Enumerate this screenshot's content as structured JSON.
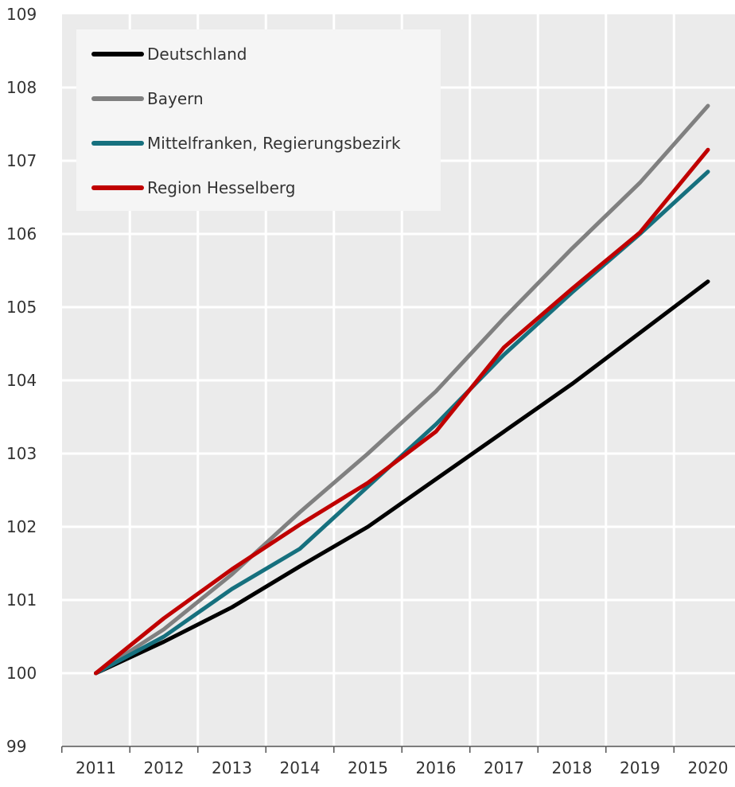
{
  "chart_data": {
    "type": "line",
    "title": "",
    "xlabel": "",
    "ylabel": "",
    "categories": [
      "2011",
      "2012",
      "2013",
      "2014",
      "2015",
      "2016",
      "2017",
      "2018",
      "2019",
      "2020"
    ],
    "ylim": [
      99,
      109
    ],
    "yticks": [
      99,
      100,
      101,
      102,
      103,
      104,
      105,
      106,
      107,
      108,
      109
    ],
    "grid": true,
    "legend_position": "top-left",
    "background_color": "#ebebeb",
    "series": [
      {
        "name": "Deutschland",
        "color": "#000000",
        "values": [
          100,
          100.43,
          100.9,
          101.46,
          102.0,
          102.65,
          103.3,
          103.95,
          104.65,
          105.35
        ]
      },
      {
        "name": "Bayern",
        "color": "#808080",
        "values": [
          100,
          100.6,
          101.35,
          102.2,
          103.0,
          103.85,
          104.85,
          105.8,
          106.7,
          107.75
        ]
      },
      {
        "name": "Mittelfranken, Regierungsbezirk",
        "color": "#16707e",
        "values": [
          100,
          100.5,
          101.15,
          101.7,
          102.55,
          103.4,
          104.35,
          105.2,
          106.0,
          106.85
        ]
      },
      {
        "name": "Region Hesselberg",
        "color": "#c00000",
        "values": [
          100,
          100.75,
          101.42,
          102.03,
          102.6,
          103.3,
          104.45,
          105.25,
          106.02,
          107.15
        ]
      }
    ]
  }
}
